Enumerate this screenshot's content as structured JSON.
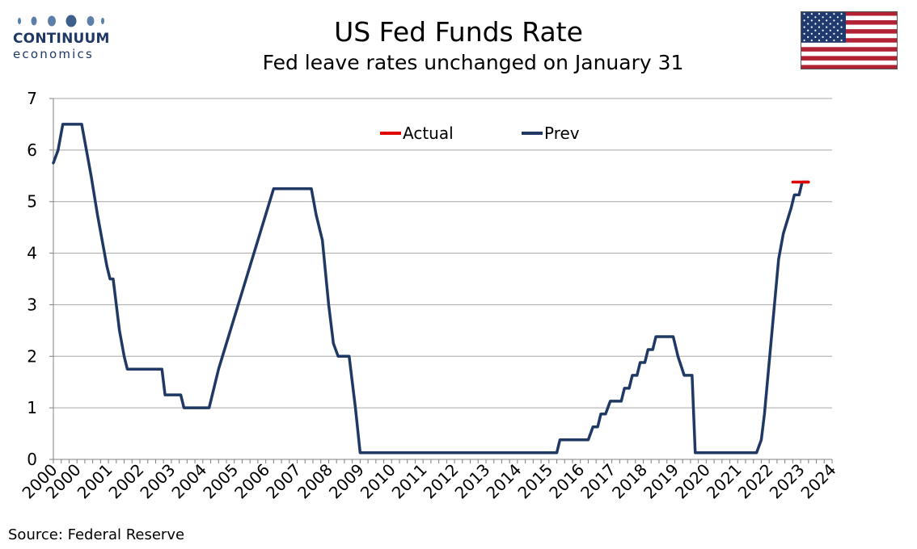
{
  "logo": {
    "name": "CONTINUUM",
    "tagline": "economics",
    "color": "#1f3864"
  },
  "header": {
    "title": "US Fed Funds Rate",
    "subtitle": "Fed leave rates unchanged on January 31"
  },
  "footer": {
    "source": "Source: Federal Reserve"
  },
  "flag_icon": "us-flag-icon",
  "chart_data": {
    "type": "line",
    "title": "US Fed Funds Rate",
    "subtitle": "Fed leave rates unchanged on January 31",
    "xlabel": "",
    "ylabel": "",
    "ylim": [
      0,
      7
    ],
    "yticks": [
      0,
      1,
      2,
      3,
      4,
      5,
      6,
      7
    ],
    "xlim": [
      2000.0,
      2024.75
    ],
    "x_tick_labels": [
      {
        "label": "2000",
        "x": 2000.0
      },
      {
        "label": "2000",
        "x": 2000.75
      },
      {
        "label": "2001",
        "x": 2001.75
      },
      {
        "label": "2002",
        "x": 2002.75
      },
      {
        "label": "2003",
        "x": 2003.75
      },
      {
        "label": "2004",
        "x": 2004.75
      },
      {
        "label": "2005",
        "x": 2005.75
      },
      {
        "label": "2006",
        "x": 2006.75
      },
      {
        "label": "2007",
        "x": 2007.75
      },
      {
        "label": "2008",
        "x": 2008.75
      },
      {
        "label": "2009",
        "x": 2009.75
      },
      {
        "label": "2010",
        "x": 2010.75
      },
      {
        "label": "2011",
        "x": 2011.75
      },
      {
        "label": "2012",
        "x": 2012.75
      },
      {
        "label": "2013",
        "x": 2013.75
      },
      {
        "label": "2014",
        "x": 2014.75
      },
      {
        "label": "2015",
        "x": 2015.75
      },
      {
        "label": "2016",
        "x": 2016.75
      },
      {
        "label": "2017",
        "x": 2017.75
      },
      {
        "label": "2018",
        "x": 2018.75
      },
      {
        "label": "2019",
        "x": 2019.75
      },
      {
        "label": "2020",
        "x": 2020.75
      },
      {
        "label": "2021",
        "x": 2021.75
      },
      {
        "label": "2022",
        "x": 2022.75
      },
      {
        "label": "2023",
        "x": 2023.75
      },
      {
        "label": "2024",
        "x": 2024.75
      }
    ],
    "grid": true,
    "legend": "top-center",
    "series": [
      {
        "name": "Actual",
        "color": "#e00000",
        "points": [
          [
            2023.5,
            5.38
          ],
          [
            2024.0,
            5.38
          ]
        ]
      },
      {
        "name": "Prev",
        "color": "#1f3864",
        "points": [
          [
            2000.0,
            5.75
          ],
          [
            2000.15,
            6.0
          ],
          [
            2000.3,
            6.5
          ],
          [
            2000.9,
            6.5
          ],
          [
            2001.2,
            5.5
          ],
          [
            2001.4,
            4.75
          ],
          [
            2001.7,
            3.75
          ],
          [
            2001.8,
            3.5
          ],
          [
            2001.9,
            3.5
          ],
          [
            2002.1,
            2.5
          ],
          [
            2002.25,
            2.0
          ],
          [
            2002.35,
            1.75
          ],
          [
            2003.45,
            1.75
          ],
          [
            2003.55,
            1.25
          ],
          [
            2004.05,
            1.25
          ],
          [
            2004.15,
            1.0
          ],
          [
            2004.95,
            1.0
          ],
          [
            2005.05,
            1.25
          ],
          [
            2005.25,
            1.75
          ],
          [
            2005.5,
            2.25
          ],
          [
            2005.75,
            2.75
          ],
          [
            2006.0,
            3.25
          ],
          [
            2006.25,
            3.75
          ],
          [
            2006.5,
            4.25
          ],
          [
            2006.75,
            4.75
          ],
          [
            2007.0,
            5.25
          ],
          [
            2008.2,
            5.25
          ],
          [
            2008.35,
            4.75
          ],
          [
            2008.55,
            4.25
          ],
          [
            2008.75,
            3.0
          ],
          [
            2008.9,
            2.25
          ],
          [
            2009.05,
            2.0
          ],
          [
            2009.4,
            2.0
          ],
          [
            2009.6,
            1.0
          ],
          [
            2009.75,
            0.13
          ],
          [
            2016.0,
            0.13
          ],
          [
            2016.1,
            0.38
          ],
          [
            2017.0,
            0.38
          ],
          [
            2017.15,
            0.63
          ],
          [
            2017.3,
            0.63
          ],
          [
            2017.4,
            0.88
          ],
          [
            2017.55,
            0.88
          ],
          [
            2017.7,
            1.13
          ],
          [
            2018.05,
            1.13
          ],
          [
            2018.15,
            1.38
          ],
          [
            2018.3,
            1.38
          ],
          [
            2018.4,
            1.63
          ],
          [
            2018.55,
            1.63
          ],
          [
            2018.65,
            1.88
          ],
          [
            2018.8,
            1.88
          ],
          [
            2018.9,
            2.13
          ],
          [
            2019.05,
            2.13
          ],
          [
            2019.15,
            2.38
          ],
          [
            2019.7,
            2.38
          ],
          [
            2019.8,
            2.13
          ],
          [
            2019.85,
            2.0
          ],
          [
            2020.05,
            1.63
          ],
          [
            2020.3,
            1.63
          ],
          [
            2020.4,
            0.13
          ],
          [
            2022.35,
            0.13
          ],
          [
            2022.5,
            0.38
          ],
          [
            2022.6,
            0.88
          ],
          [
            2022.75,
            1.88
          ],
          [
            2022.9,
            2.88
          ],
          [
            2023.05,
            3.88
          ],
          [
            2023.2,
            4.38
          ],
          [
            2023.45,
            4.88
          ],
          [
            2023.55,
            5.13
          ],
          [
            2023.7,
            5.13
          ],
          [
            2023.8,
            5.38
          ],
          [
            2024.0,
            5.38
          ]
        ]
      }
    ]
  }
}
